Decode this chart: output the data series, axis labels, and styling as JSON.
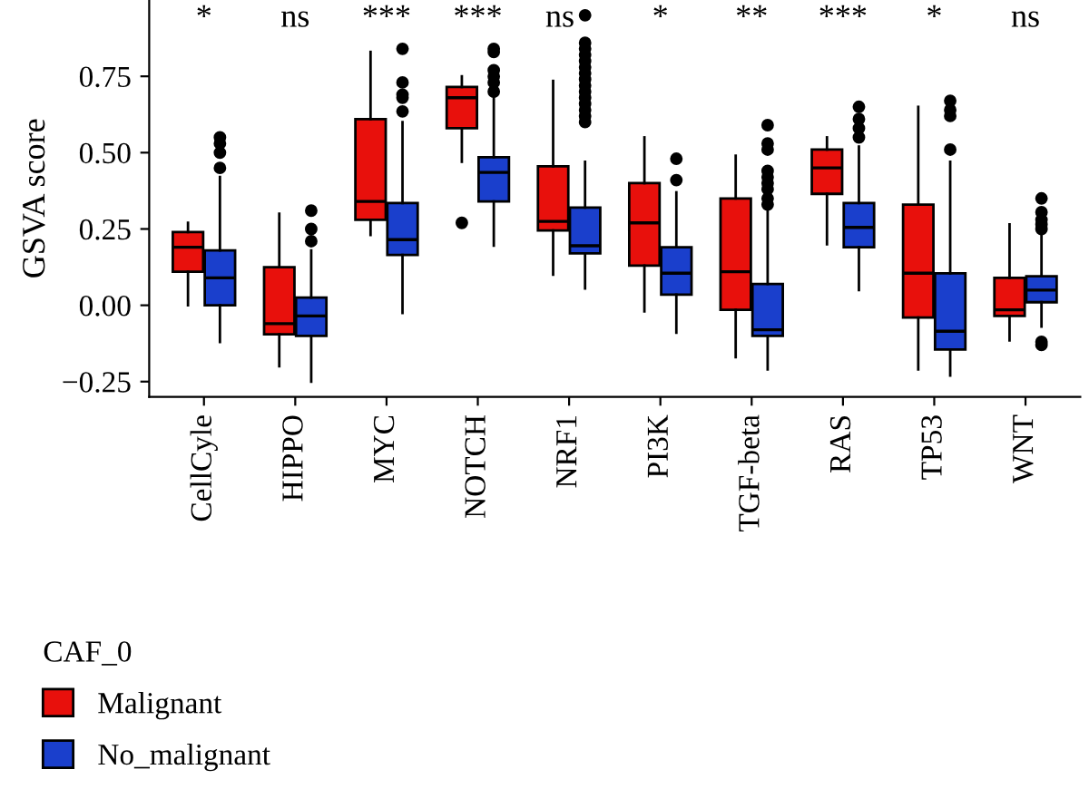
{
  "chart_data": {
    "type": "box",
    "ylabel": "GSVA score",
    "legend_title": "CAF_0",
    "legend": "bottom",
    "grid": false,
    "categories": [
      "CellCyle",
      "HIPPO",
      "MYC",
      "NOTCH",
      "NRF1",
      "PI3K",
      "TGF-beta",
      "RAS",
      "TP53",
      "WNT"
    ],
    "ylim": [
      -0.3,
      1.0
    ],
    "yticks": [
      {
        "value": -0.25,
        "label": "−0.25"
      },
      {
        "value": 0,
        "label": "0.00"
      },
      0.25,
      {
        "value": 0.5,
        "label": "0.50"
      },
      0.75
    ],
    "annotations": [
      "*",
      "ns",
      "***",
      "***",
      "ns",
      "*",
      "**",
      "***",
      "*",
      "ns"
    ],
    "series": [
      {
        "name": "Malignant",
        "color": "#e8100c",
        "boxes": [
          {
            "low": 0.0,
            "q1": 0.11,
            "median": 0.19,
            "q3": 0.24,
            "high": 0.27
          },
          {
            "low": -0.2,
            "q1": -0.095,
            "median": -0.06,
            "q3": 0.125,
            "high": 0.3
          },
          {
            "low": 0.23,
            "q1": 0.28,
            "median": 0.34,
            "q3": 0.61,
            "high": 0.83
          },
          {
            "low": 0.47,
            "q1": 0.58,
            "median": 0.68,
            "q3": 0.715,
            "high": 0.75,
            "outliers": [
              0.27
            ]
          },
          {
            "low": 0.1,
            "q1": 0.245,
            "median": 0.275,
            "q3": 0.455,
            "high": 0.735
          },
          {
            "low": -0.02,
            "q1": 0.13,
            "median": 0.27,
            "q3": 0.4,
            "high": 0.55
          },
          {
            "low": -0.17,
            "q1": -0.015,
            "median": 0.11,
            "q3": 0.35,
            "high": 0.49
          },
          {
            "low": 0.2,
            "q1": 0.365,
            "median": 0.45,
            "q3": 0.51,
            "high": 0.55
          },
          {
            "low": -0.21,
            "q1": -0.04,
            "median": 0.105,
            "q3": 0.33,
            "high": 0.65
          },
          {
            "low": -0.115,
            "q1": -0.035,
            "median": -0.015,
            "q3": 0.09,
            "high": 0.265
          }
        ]
      },
      {
        "name": "No_malignant",
        "color": "#1a3fcc",
        "boxes": [
          {
            "low": -0.12,
            "q1": 0.0,
            "median": 0.09,
            "q3": 0.18,
            "high": 0.42,
            "outliers": [
              0.45,
              0.5,
              0.53,
              0.55
            ]
          },
          {
            "low": -0.25,
            "q1": -0.1,
            "median": -0.035,
            "q3": 0.025,
            "high": 0.18,
            "outliers": [
              0.21,
              0.25,
              0.31
            ]
          },
          {
            "low": -0.025,
            "q1": 0.165,
            "median": 0.215,
            "q3": 0.335,
            "high": 0.6,
            "outliers": [
              0.635,
              0.68,
              0.69,
              0.73,
              0.84
            ]
          },
          {
            "low": 0.195,
            "q1": 0.34,
            "median": 0.435,
            "q3": 0.485,
            "high": 0.69,
            "outliers": [
              0.7,
              0.73,
              0.75,
              0.77,
              0.83,
              0.84
            ]
          },
          {
            "low": 0.055,
            "q1": 0.17,
            "median": 0.195,
            "q3": 0.32,
            "high": 0.47,
            "outliers": [
              0.6,
              0.62,
              0.64,
              0.66,
              0.68,
              0.7,
              0.72,
              0.74,
              0.76,
              0.78,
              0.8,
              0.82,
              0.84,
              0.86,
              0.95
            ]
          },
          {
            "low": -0.09,
            "q1": 0.035,
            "median": 0.105,
            "q3": 0.19,
            "high": 0.37,
            "outliers": [
              0.41,
              0.48
            ]
          },
          {
            "low": -0.21,
            "q1": -0.1,
            "median": -0.08,
            "q3": 0.07,
            "high": 0.32,
            "outliers": [
              0.33,
              0.35,
              0.38,
              0.4,
              0.42,
              0.44,
              0.51,
              0.53,
              0.59
            ]
          },
          {
            "low": 0.05,
            "q1": 0.19,
            "median": 0.255,
            "q3": 0.335,
            "high": 0.52,
            "outliers": [
              0.55,
              0.58,
              0.61,
              0.65
            ]
          },
          {
            "low": -0.23,
            "q1": -0.145,
            "median": -0.085,
            "q3": 0.105,
            "high": 0.47,
            "outliers": [
              0.51,
              0.62,
              0.64,
              0.67
            ]
          },
          {
            "low": -0.07,
            "q1": 0.01,
            "median": 0.05,
            "q3": 0.095,
            "high": 0.23,
            "outliers": [
              -0.13,
              -0.12,
              0.25,
              0.265,
              0.28,
              0.305,
              0.35
            ]
          }
        ]
      }
    ]
  }
}
